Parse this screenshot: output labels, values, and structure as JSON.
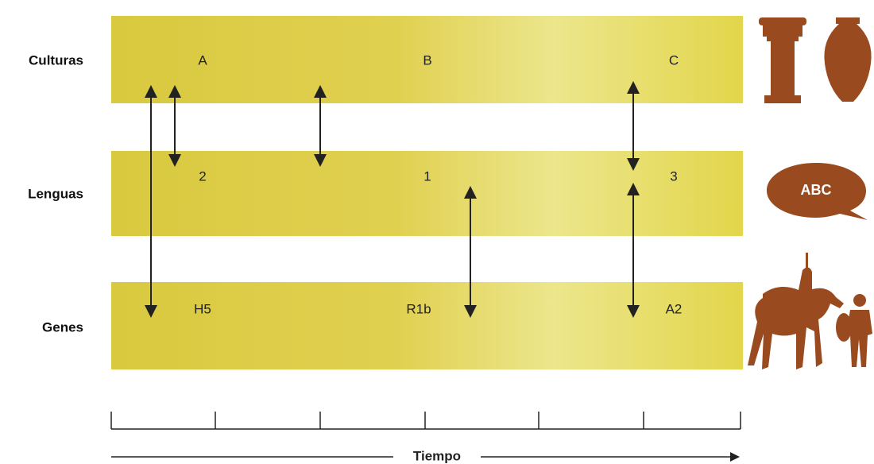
{
  "rows": [
    {
      "label": "Culturas",
      "items": [
        "A",
        "B",
        "C"
      ]
    },
    {
      "label": "Lenguas",
      "items": [
        "2",
        "1",
        "3"
      ]
    },
    {
      "label": "Genes",
      "items": [
        "H5",
        "R1b",
        "A2"
      ]
    }
  ],
  "axis_label": "Tiempo",
  "speech_icon": "ABC"
}
